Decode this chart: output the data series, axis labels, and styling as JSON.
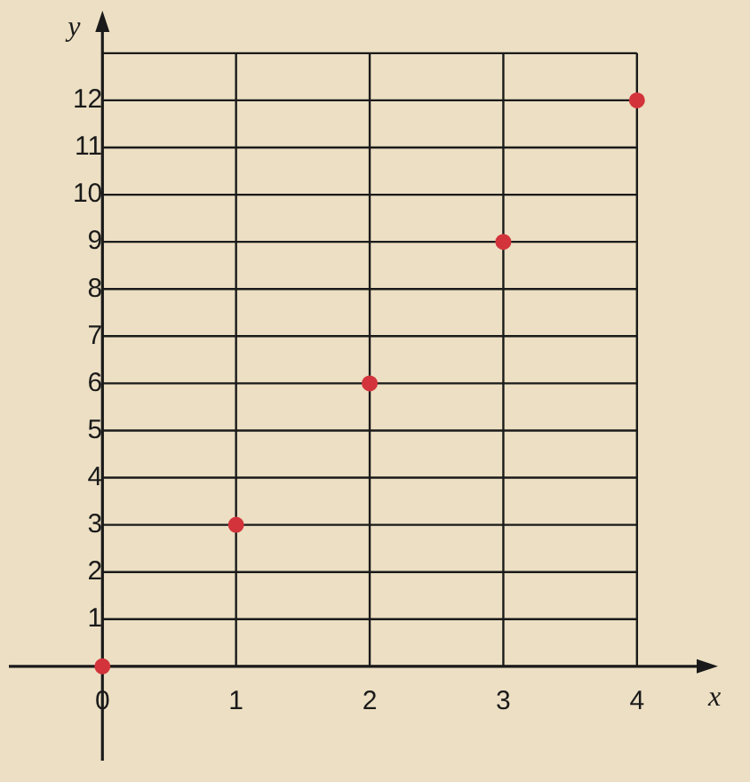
{
  "chart_data": {
    "type": "scatter",
    "xlabel": "x",
    "ylabel": "y",
    "x": [
      0,
      1,
      2,
      3,
      4
    ],
    "series": [
      {
        "color": "#d3343c",
        "values": [
          0,
          3,
          6,
          9,
          12
        ]
      }
    ],
    "xlim": [
      -0.7,
      4.5
    ],
    "ylim": [
      -2,
      13.6
    ],
    "xticks": [
      0,
      1,
      2,
      3,
      4
    ],
    "yticks": [
      {
        "value": 0,
        "label": null
      },
      1,
      2,
      3,
      4,
      5,
      6,
      7,
      8,
      9,
      10,
      11,
      12,
      {
        "value": 13,
        "label": null
      }
    ],
    "grid": true,
    "marker": "circle",
    "legend": false
  }
}
